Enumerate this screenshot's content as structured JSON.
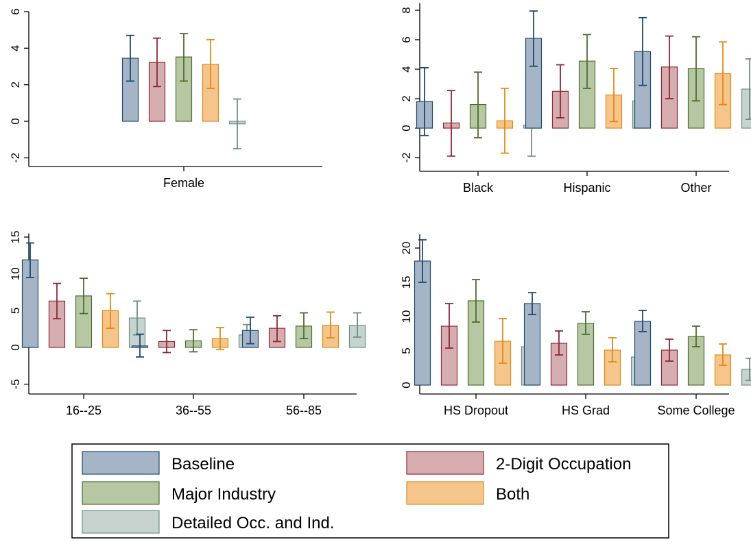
{
  "colors": {
    "series_fill": [
      "#a5b4c6",
      "#d6aeb1",
      "#b7c7a3",
      "#f5c58c",
      "#c7d3cf"
    ],
    "series_stroke": [
      "#1d4a6e",
      "#8f2633",
      "#4b6e2e",
      "#e08a14",
      "#6e8f89"
    ]
  },
  "legend": {
    "items": [
      "Baseline",
      "2-Digit Occupation",
      "Major Industry",
      "Both",
      "Detailed Occ. and Ind."
    ]
  },
  "chart_data": [
    {
      "type": "bar",
      "categories": [
        "Female"
      ],
      "ylim": [
        -2.5,
        6
      ],
      "yticks": [
        -2,
        0,
        2,
        4,
        6
      ],
      "series": [
        {
          "name": "Baseline",
          "values": [
            3.45
          ],
          "ci_low": [
            2.2
          ],
          "ci_high": [
            4.7
          ]
        },
        {
          "name": "2-Digit Occupation",
          "values": [
            3.22
          ],
          "ci_low": [
            1.9
          ],
          "ci_high": [
            4.55
          ]
        },
        {
          "name": "Major Industry",
          "values": [
            3.52
          ],
          "ci_low": [
            2.2
          ],
          "ci_high": [
            4.8
          ]
        },
        {
          "name": "Both",
          "values": [
            3.12
          ],
          "ci_low": [
            1.8
          ],
          "ci_high": [
            4.47
          ]
        },
        {
          "name": "Detailed Occ. and Ind.",
          "values": [
            -0.14
          ],
          "ci_low": [
            -1.5
          ],
          "ci_high": [
            1.22
          ]
        }
      ]
    },
    {
      "type": "bar",
      "categories": [
        "Black",
        "Hispanic",
        "Other"
      ],
      "ylim": [
        -2.5,
        8.5
      ],
      "yticks": [
        -2,
        0,
        2,
        4,
        6,
        8
      ],
      "series": [
        {
          "name": "Baseline",
          "values": [
            1.8,
            6.1,
            5.2
          ],
          "ci_low": [
            -0.5,
            4.2,
            2.9
          ],
          "ci_high": [
            4.1,
            7.95,
            7.5
          ]
        },
        {
          "name": "2-Digit Occupation",
          "values": [
            0.35,
            2.5,
            4.15
          ],
          "ci_low": [
            -1.9,
            0.7,
            2.0
          ],
          "ci_high": [
            2.55,
            4.3,
            6.25
          ]
        },
        {
          "name": "Major Industry",
          "values": [
            1.6,
            4.55,
            4.05
          ],
          "ci_low": [
            -0.65,
            2.7,
            1.85
          ],
          "ci_high": [
            3.8,
            6.35,
            6.2
          ]
        },
        {
          "name": "Both",
          "values": [
            0.5,
            2.25,
            3.7
          ],
          "ci_low": [
            -1.7,
            0.45,
            1.6
          ],
          "ci_high": [
            2.7,
            4.05,
            5.85
          ]
        },
        {
          "name": "Detailed Occ. and Ind.",
          "values": [
            0.2,
            1.85,
            2.65
          ],
          "ci_low": [
            -1.9,
            0.1,
            0.6
          ],
          "ci_high": [
            2.3,
            3.6,
            4.7
          ]
        }
      ]
    },
    {
      "type": "bar",
      "categories": [
        "16--25",
        "36--55",
        "56--85"
      ],
      "ylim": [
        -6,
        15.5
      ],
      "yticks": [
        -5,
        0,
        5,
        10,
        15
      ],
      "series": [
        {
          "name": "Baseline",
          "values": [
            11.9,
            0.2,
            2.3
          ],
          "ci_low": [
            9.5,
            -1.3,
            0.5
          ],
          "ci_high": [
            14.2,
            1.8,
            4.1
          ]
        },
        {
          "name": "2-Digit Occupation",
          "values": [
            6.3,
            0.8,
            2.6
          ],
          "ci_low": [
            3.9,
            -0.7,
            0.8
          ],
          "ci_high": [
            8.7,
            2.3,
            4.3
          ]
        },
        {
          "name": "Major Industry",
          "values": [
            7.0,
            0.9,
            2.9
          ],
          "ci_low": [
            4.6,
            -0.6,
            1.2
          ],
          "ci_high": [
            9.4,
            2.4,
            4.7
          ]
        },
        {
          "name": "Both",
          "values": [
            5.0,
            1.2,
            3.0
          ],
          "ci_low": [
            2.6,
            -0.3,
            1.3
          ],
          "ci_high": [
            7.3,
            2.7,
            4.8
          ]
        },
        {
          "name": "Detailed Occ. and Ind.",
          "values": [
            4.0,
            1.7,
            3.0
          ],
          "ci_low": [
            1.7,
            0.2,
            1.4
          ],
          "ci_high": [
            6.3,
            3.1,
            4.7
          ]
        }
      ]
    },
    {
      "type": "bar",
      "categories": [
        "HS Dropout",
        "HS Grad",
        "Some College"
      ],
      "ylim": [
        -1.2,
        22
      ],
      "yticks": [
        0,
        5,
        10,
        15,
        20
      ],
      "series": [
        {
          "name": "Baseline",
          "values": [
            18.1,
            11.9,
            9.3
          ],
          "ci_low": [
            15.0,
            10.3,
            7.8
          ],
          "ci_high": [
            21.2,
            13.5,
            10.9
          ]
        },
        {
          "name": "2-Digit Occupation",
          "values": [
            8.6,
            6.1,
            5.1
          ],
          "ci_low": [
            5.4,
            4.4,
            3.5
          ],
          "ci_high": [
            11.9,
            7.9,
            6.7
          ]
        },
        {
          "name": "Major Industry",
          "values": [
            12.3,
            9.0,
            7.1
          ],
          "ci_low": [
            9.2,
            7.4,
            5.6
          ],
          "ci_high": [
            15.4,
            10.7,
            8.6
          ]
        },
        {
          "name": "Both",
          "values": [
            6.4,
            5.1,
            4.4
          ],
          "ci_low": [
            3.2,
            3.4,
            2.9
          ],
          "ci_high": [
            9.7,
            6.9,
            6.0
          ]
        },
        {
          "name": "Detailed Occ. and Ind.",
          "values": [
            5.6,
            4.1,
            2.3
          ],
          "ci_low": [
            2.4,
            2.3,
            0.7
          ],
          "ci_high": [
            8.9,
            5.9,
            3.9
          ]
        }
      ]
    }
  ]
}
